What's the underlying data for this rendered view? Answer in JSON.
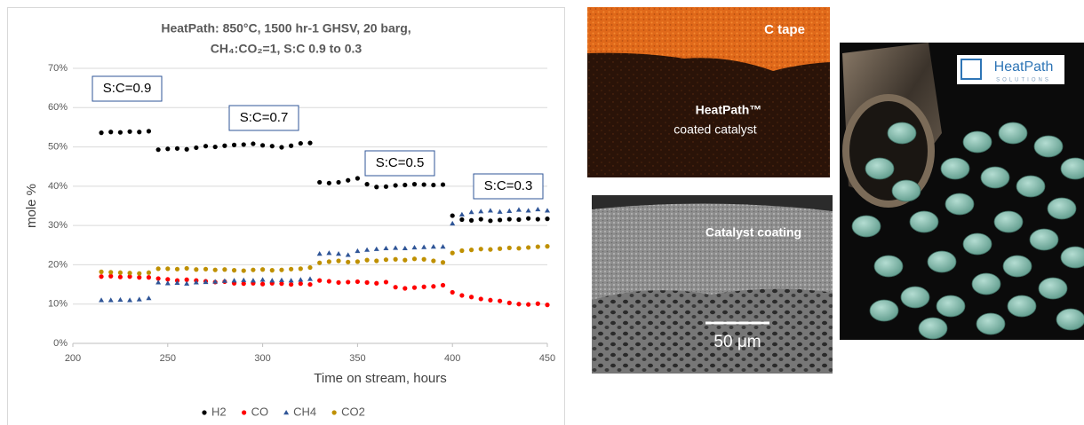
{
  "chart_data": {
    "type": "scatter",
    "title": "HeatPath: 850°C, 1500 hr-1 GHSV, 20 barg,",
    "subtitle": "CH₄:CO₂=1, S:C 0.9 to 0.3",
    "x_label": "Time on stream, hours",
    "y_label": "mole %",
    "annotations": [
      "S:C=0.9",
      "S:C=0.7",
      "S:C=0.5",
      "S:C=0.3"
    ],
    "xlim": [
      200,
      450
    ],
    "xticks": [
      200,
      250,
      300,
      350,
      400,
      450
    ],
    "ylim": [
      0,
      70
    ],
    "yticks": [
      {
        "value": 0,
        "label": "0%"
      },
      {
        "value": 10,
        "label": "10%"
      },
      {
        "value": 20,
        "label": "20%"
      },
      {
        "value": 30,
        "label": "30%"
      },
      {
        "value": 40,
        "label": "40%"
      },
      {
        "value": 50,
        "label": "50%"
      },
      {
        "value": 60,
        "label": "60%"
      },
      {
        "value": 70,
        "label": "70%"
      }
    ],
    "grid": true,
    "legend": "bottom",
    "x": [
      215,
      220,
      225,
      230,
      235,
      240,
      245,
      250,
      255,
      260,
      265,
      270,
      275,
      280,
      285,
      290,
      295,
      300,
      305,
      310,
      315,
      320,
      325,
      330,
      335,
      340,
      345,
      350,
      355,
      360,
      365,
      370,
      375,
      380,
      385,
      390,
      395,
      400,
      405,
      410,
      415,
      420,
      425,
      430,
      435,
      440,
      445,
      450
    ],
    "series": [
      {
        "name": "H2",
        "color": "#000000",
        "marker": "circle",
        "values": [
          53.6,
          53.8,
          53.7,
          53.9,
          53.8,
          54.0,
          49.3,
          49.5,
          49.6,
          49.4,
          49.8,
          50.2,
          50.0,
          50.3,
          50.5,
          50.6,
          50.8,
          50.4,
          50.2,
          49.9,
          50.3,
          50.9,
          51.0,
          41.0,
          40.8,
          41.0,
          41.5,
          42.0,
          40.5,
          39.8,
          39.9,
          40.2,
          40.3,
          40.5,
          40.4,
          40.3,
          40.4,
          32.5,
          31.5,
          31.3,
          31.6,
          31.2,
          31.4,
          31.6,
          31.5,
          31.8,
          31.6,
          31.7
        ]
      },
      {
        "name": "CO",
        "color": "#ff0000",
        "marker": "circle",
        "values": [
          17.0,
          17.1,
          16.9,
          17.0,
          16.8,
          16.8,
          16.5,
          16.3,
          16.0,
          16.2,
          16.0,
          15.8,
          15.6,
          15.7,
          15.3,
          15.2,
          15.3,
          15.1,
          15.3,
          15.2,
          15.0,
          15.2,
          15.0,
          16.0,
          15.8,
          15.5,
          15.6,
          15.7,
          15.5,
          15.3,
          15.6,
          14.3,
          14.0,
          14.2,
          14.4,
          14.5,
          14.8,
          13.0,
          12.2,
          11.8,
          11.3,
          11.0,
          10.8,
          10.3,
          10.0,
          9.9,
          10.1,
          9.8
        ]
      },
      {
        "name": "CH4",
        "color": "#2f5597",
        "marker": "triangle",
        "values": [
          11.0,
          11.0,
          11.1,
          11.0,
          11.2,
          11.5,
          15.5,
          15.3,
          15.4,
          15.2,
          15.5,
          15.6,
          15.7,
          15.9,
          16.0,
          16.1,
          16.0,
          16.2,
          16.0,
          16.1,
          16.0,
          16.2,
          16.4,
          22.8,
          23.0,
          22.8,
          22.5,
          23.5,
          23.8,
          24.0,
          24.2,
          24.3,
          24.2,
          24.4,
          24.5,
          24.6,
          24.6,
          30.5,
          32.8,
          33.4,
          33.6,
          33.8,
          33.5,
          33.7,
          34.0,
          33.8,
          34.1,
          33.8
        ]
      },
      {
        "name": "CO2",
        "color": "#bf9000",
        "marker": "circle",
        "values": [
          18.2,
          18.1,
          18.0,
          17.9,
          17.8,
          18.0,
          19.0,
          19.0,
          18.9,
          19.1,
          18.8,
          18.9,
          18.7,
          18.8,
          18.6,
          18.5,
          18.7,
          18.8,
          18.6,
          18.7,
          18.9,
          19.0,
          19.3,
          20.5,
          20.8,
          21.0,
          20.7,
          20.8,
          21.2,
          21.0,
          21.3,
          21.4,
          21.2,
          21.5,
          21.4,
          21.0,
          20.6,
          23.0,
          23.6,
          23.8,
          24.0,
          23.9,
          24.1,
          24.3,
          24.2,
          24.4,
          24.6,
          24.7
        ]
      }
    ]
  },
  "images": {
    "tape_label": "C tape",
    "coating_title": "HeatPath™",
    "coating_subtitle": "coated catalyst",
    "sem_label": "Catalyst coating",
    "scale_bar": "50 μm",
    "logo_name": "HeatPath",
    "logo_tagline": "SOLUTIONS"
  }
}
